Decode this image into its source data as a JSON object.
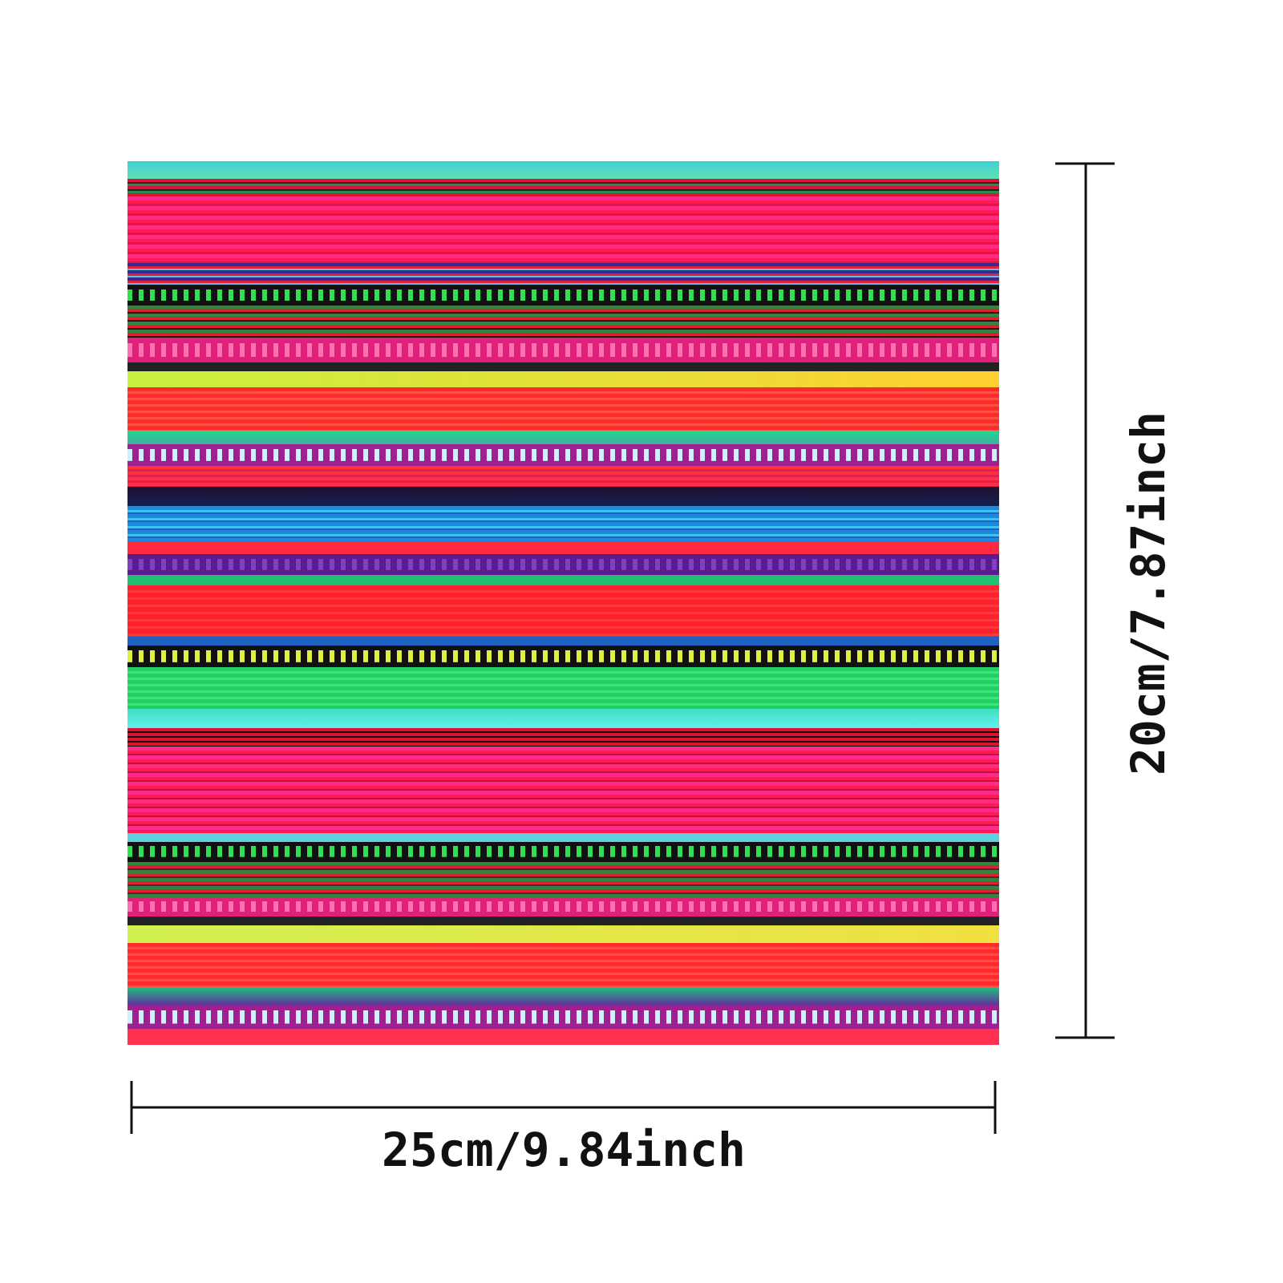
{
  "width_label": "25cm/9.84inch",
  "height_label": "20cm/7.87inch"
}
